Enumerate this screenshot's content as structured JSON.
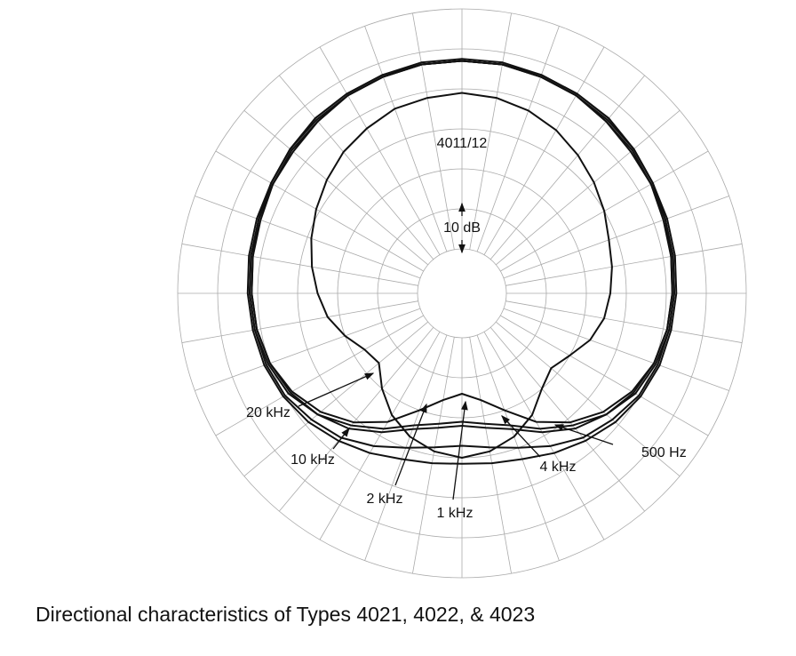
{
  "chart_data": {
    "type": "polar",
    "title": "Directional characteristics of Types 4021, 4022, & 4023",
    "model_label": "4011/12",
    "scale_label": "10 dB",
    "theta": [
      0,
      10,
      20,
      30,
      40,
      50,
      60,
      70,
      80,
      90,
      100,
      110,
      120,
      130,
      140,
      150,
      160,
      170,
      180,
      190,
      200,
      210,
      220,
      230,
      240,
      250,
      260,
      270,
      280,
      290,
      300,
      310,
      320,
      330,
      340,
      350
    ],
    "rlim": [
      -60,
      0
    ],
    "rticks": [
      -60,
      -50,
      -40,
      -30,
      -20,
      -10,
      0
    ],
    "color": "#111111",
    "series": [
      {
        "name": "500 Hz",
        "values": [
          -13,
          -13,
          -13.5,
          -14,
          -14.5,
          -15,
          -16,
          -17,
          -17.5,
          -18,
          -18.5,
          -19.5,
          -21,
          -24,
          -28,
          -32,
          -36,
          -38,
          -39,
          -38,
          -36,
          -32,
          -28,
          -24,
          -21,
          -19.5,
          -18.5,
          -18,
          -17.5,
          -17,
          -16,
          -15,
          -14.5,
          -14,
          -13.5,
          -13
        ]
      },
      {
        "name": "1 kHz",
        "values": [
          -13,
          -13,
          -13.5,
          -14,
          -15,
          -16,
          -16.5,
          -17.5,
          -18,
          -18.5,
          -19,
          -20,
          -22,
          -25,
          -29,
          -34,
          -40,
          -44,
          -46,
          -44,
          -40,
          -34,
          -29,
          -25,
          -22,
          -20,
          -19,
          -18.5,
          -18,
          -17.5,
          -16.5,
          -16,
          -15,
          -14,
          -13.5,
          -13
        ]
      },
      {
        "name": "2 kHz",
        "values": [
          -12.5,
          -12.5,
          -13,
          -13.5,
          -14,
          -15,
          -16,
          -17,
          -17.5,
          -18,
          -18.5,
          -19,
          -20,
          -22,
          -24,
          -27,
          -30,
          -32,
          -33,
          -32,
          -30,
          -27,
          -24,
          -22,
          -20,
          -19,
          -18.5,
          -18,
          -17.5,
          -17,
          -16,
          -15,
          -14,
          -13.5,
          -13,
          -12.5
        ]
      },
      {
        "name": "4 kHz",
        "values": [
          -13,
          -13,
          -13.5,
          -14,
          -15,
          -15.5,
          -16.5,
          -17,
          -18,
          -18.5,
          -19,
          -20,
          -21.5,
          -24,
          -27,
          -31,
          -35,
          -37,
          -38,
          -37,
          -35,
          -31,
          -27,
          -24,
          -21.5,
          -20,
          -19,
          -18.5,
          -18,
          -17,
          -16.5,
          -15.5,
          -15,
          -14,
          -13.5,
          -13
        ]
      },
      {
        "name": "10 kHz",
        "values": [
          -13,
          -13,
          -13,
          -13.5,
          -14,
          -15,
          -16,
          -16.5,
          -17,
          -17.5,
          -18,
          -18.5,
          -19.5,
          -21,
          -23,
          -25,
          -27,
          -28,
          -28.5,
          -28,
          -27,
          -25,
          -23,
          -21,
          -19.5,
          -18.5,
          -18,
          -17.5,
          -17,
          -16.5,
          -16,
          -15,
          -14,
          -13.5,
          -13,
          -13
        ]
      },
      {
        "name": "20 kHz",
        "values": [
          -21,
          -21.5,
          -22.5,
          -24,
          -26,
          -28,
          -30,
          -32,
          -33,
          -34,
          -35,
          -37,
          -40,
          -42,
          -40,
          -36,
          -33,
          -31,
          -30,
          -31,
          -33,
          -36,
          -40,
          -44,
          -43,
          -40,
          -37,
          -35,
          -33,
          -31,
          -29,
          -27,
          -25,
          -23.5,
          -22,
          -21.5
        ]
      }
    ]
  }
}
